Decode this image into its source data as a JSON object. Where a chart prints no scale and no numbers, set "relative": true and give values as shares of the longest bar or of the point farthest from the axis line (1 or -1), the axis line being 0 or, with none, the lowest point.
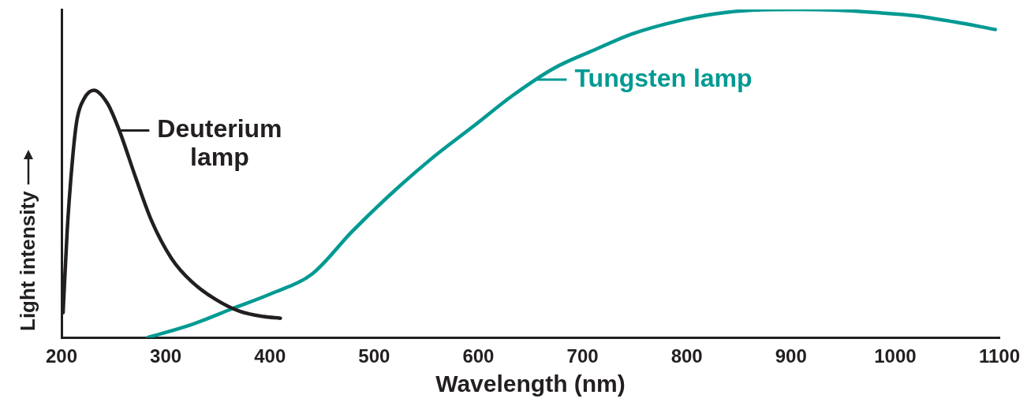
{
  "chart_data": {
    "type": "line",
    "xlabel": "Wavelength (nm)",
    "ylabel": "Light intensity",
    "relative": true,
    "legend": false,
    "grid": false,
    "marker": "none",
    "line_style": "solid",
    "xlim": [
      200,
      1100
    ],
    "xticks": [
      200,
      300,
      400,
      500,
      600,
      700,
      800,
      900,
      1000,
      1100
    ],
    "series": [
      {
        "color": "#231f20",
        "x": [
          201.5,
          205.4,
          211,
          215,
          222,
          231,
          244,
          255.5,
          271,
          286,
          305.6,
          325,
          348,
          371,
          394,
          410
        ],
        "values": [
          0.076,
          0.324,
          0.56,
          0.667,
          0.73,
          0.754,
          0.714,
          0.631,
          0.489,
          0.359,
          0.241,
          0.17,
          0.116,
          0.08,
          0.064,
          0.059
        ]
      },
      {
        "color": "#009a93",
        "x": [
          282.5,
          325,
          363,
          402,
          440.5,
          479,
          517.6,
          556,
          594.8,
          633,
          672,
          710,
          749,
          787.5,
          826,
          864.5,
          903,
          941.6,
          980,
          1019,
          1057,
          1096
        ],
        "values": [
          0,
          0.04,
          0.087,
          0.135,
          0.194,
          0.324,
          0.442,
          0.548,
          0.643,
          0.738,
          0.82,
          0.875,
          0.927,
          0.962,
          0.986,
          0.998,
          1,
          0.998,
          0.991,
          0.981,
          0.962,
          0.939
        ]
      }
    ],
    "annotations": [
      {
        "text": "Deuterium\nlamp",
        "x": 255.5,
        "y": 0.631
      },
      {
        "text": "Tungsten lamp",
        "x": 656,
        "y": 0.786
      }
    ]
  }
}
